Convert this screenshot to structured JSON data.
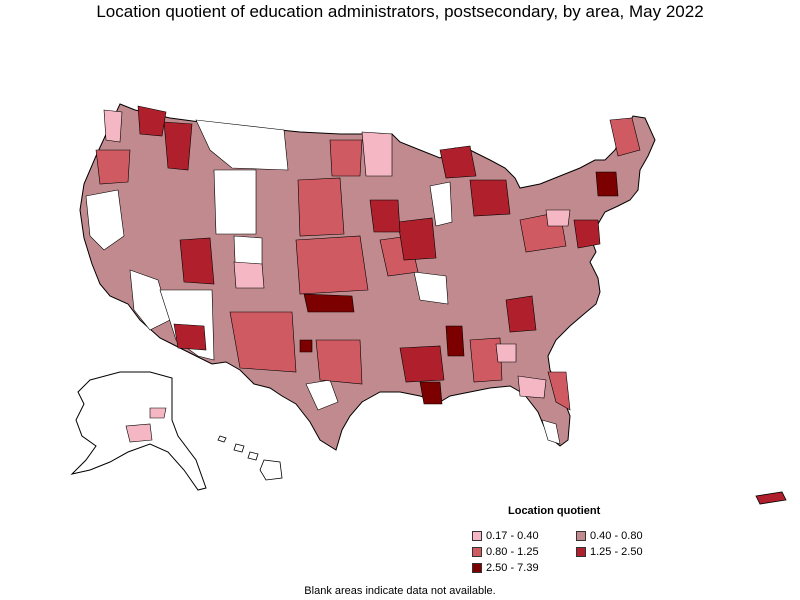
{
  "title": "Location quotient of education administrators, postsecondary, by area, May 2022",
  "legend": {
    "title": "Location quotient",
    "items": [
      {
        "label": "0.17 - 0.40",
        "color": "#f4b7c3"
      },
      {
        "label": "0.40 - 0.80",
        "color": "#c08a8e"
      },
      {
        "label": "0.80 - 1.25",
        "color": "#cf5a62"
      },
      {
        "label": "1.25 - 2.50",
        "color": "#b0202c"
      },
      {
        "label": "2.50 - 7.39",
        "color": "#7d0000"
      }
    ]
  },
  "footnote": "Blank areas indicate data not available.",
  "colors": {
    "outline": "#000000",
    "blank": "#ffffff"
  }
}
